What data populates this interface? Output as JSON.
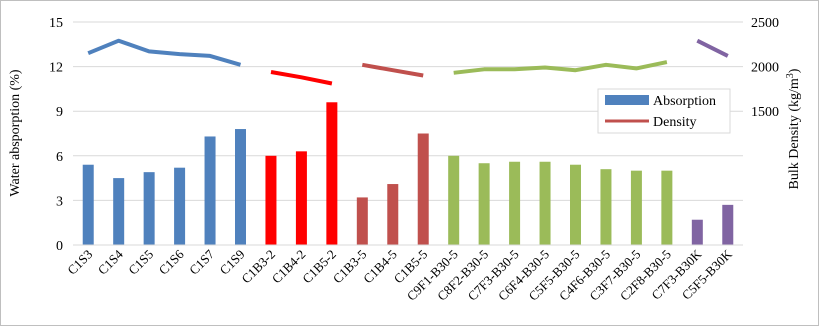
{
  "chart_data": {
    "type": "bar",
    "categories": [
      "C1S3",
      "C1S4",
      "C1S5",
      "C1S6",
      "C1S7",
      "C1S9",
      "C1B3-2",
      "C1B4-2",
      "C1B5-2",
      "C1B3-5",
      "C1B4-5",
      "C1B5-5",
      "C9F1-B30-5",
      "C8F2-B30-5",
      "C7F3-B30-5",
      "C6F4-B30-5",
      "C5F5-B30-5",
      "C4F6-B30-5",
      "C3F7-B30-5",
      "C2F8-B30-5",
      "C7F3-B30K",
      "C5F5-B30K"
    ],
    "series": [
      {
        "name": "Absorption",
        "axis": "left",
        "type": "bar",
        "color": "#4f81bd",
        "values": [
          5.4,
          4.5,
          4.9,
          5.2,
          7.3,
          7.8,
          6.0,
          6.3,
          9.6,
          3.2,
          4.1,
          7.5,
          6.0,
          5.5,
          5.6,
          5.6,
          5.4,
          5.1,
          5.0,
          5.0,
          1.7,
          2.7
        ]
      },
      {
        "name": "Density",
        "axis": "right",
        "type": "line",
        "color": "#c0504d",
        "values": [
          2150,
          2290,
          2170,
          2140,
          2120,
          2020,
          1940,
          1880,
          1810,
          2020,
          1960,
          1900,
          1930,
          1970,
          1970,
          1990,
          1960,
          2020,
          1980,
          2050,
          2290,
          2120
        ]
      }
    ],
    "category_colors": [
      "#4f81bd",
      "#4f81bd",
      "#4f81bd",
      "#4f81bd",
      "#4f81bd",
      "#4f81bd",
      "#ff0000",
      "#ff0000",
      "#ff0000",
      "#c0504d",
      "#c0504d",
      "#c0504d",
      "#9bbb59",
      "#9bbb59",
      "#9bbb59",
      "#9bbb59",
      "#9bbb59",
      "#9bbb59",
      "#9bbb59",
      "#9bbb59",
      "#8064a2",
      "#8064a2"
    ],
    "line_groups": [
      {
        "start": 0,
        "end": 5,
        "color": "#4f81bd"
      },
      {
        "start": 6,
        "end": 8,
        "color": "#ff0000"
      },
      {
        "start": 9,
        "end": 11,
        "color": "#c0504d"
      },
      {
        "start": 12,
        "end": 19,
        "color": "#9bbb59"
      },
      {
        "start": 20,
        "end": 21,
        "color": "#8064a2"
      }
    ],
    "ylabel": "Water absporption (%)",
    "y2label_main": "Bulk Density (kg/m",
    "y2label_sup": "3",
    "y2label_tail": ")",
    "ylim": [
      0,
      15
    ],
    "yticks": [
      "0",
      "3",
      "6",
      "9",
      "12",
      "15"
    ],
    "y2lim": [
      0,
      2500
    ],
    "y2ticks": [
      "1500",
      "2000",
      "2500"
    ],
    "y2tick_values": [
      1500,
      2000,
      2500
    ],
    "grid": true,
    "legend_position": "right",
    "legend": [
      {
        "label": "Absorption",
        "kind": "bar",
        "color": "#4f81bd"
      },
      {
        "label": "Density",
        "kind": "line",
        "color": "#c0504d"
      }
    ]
  }
}
